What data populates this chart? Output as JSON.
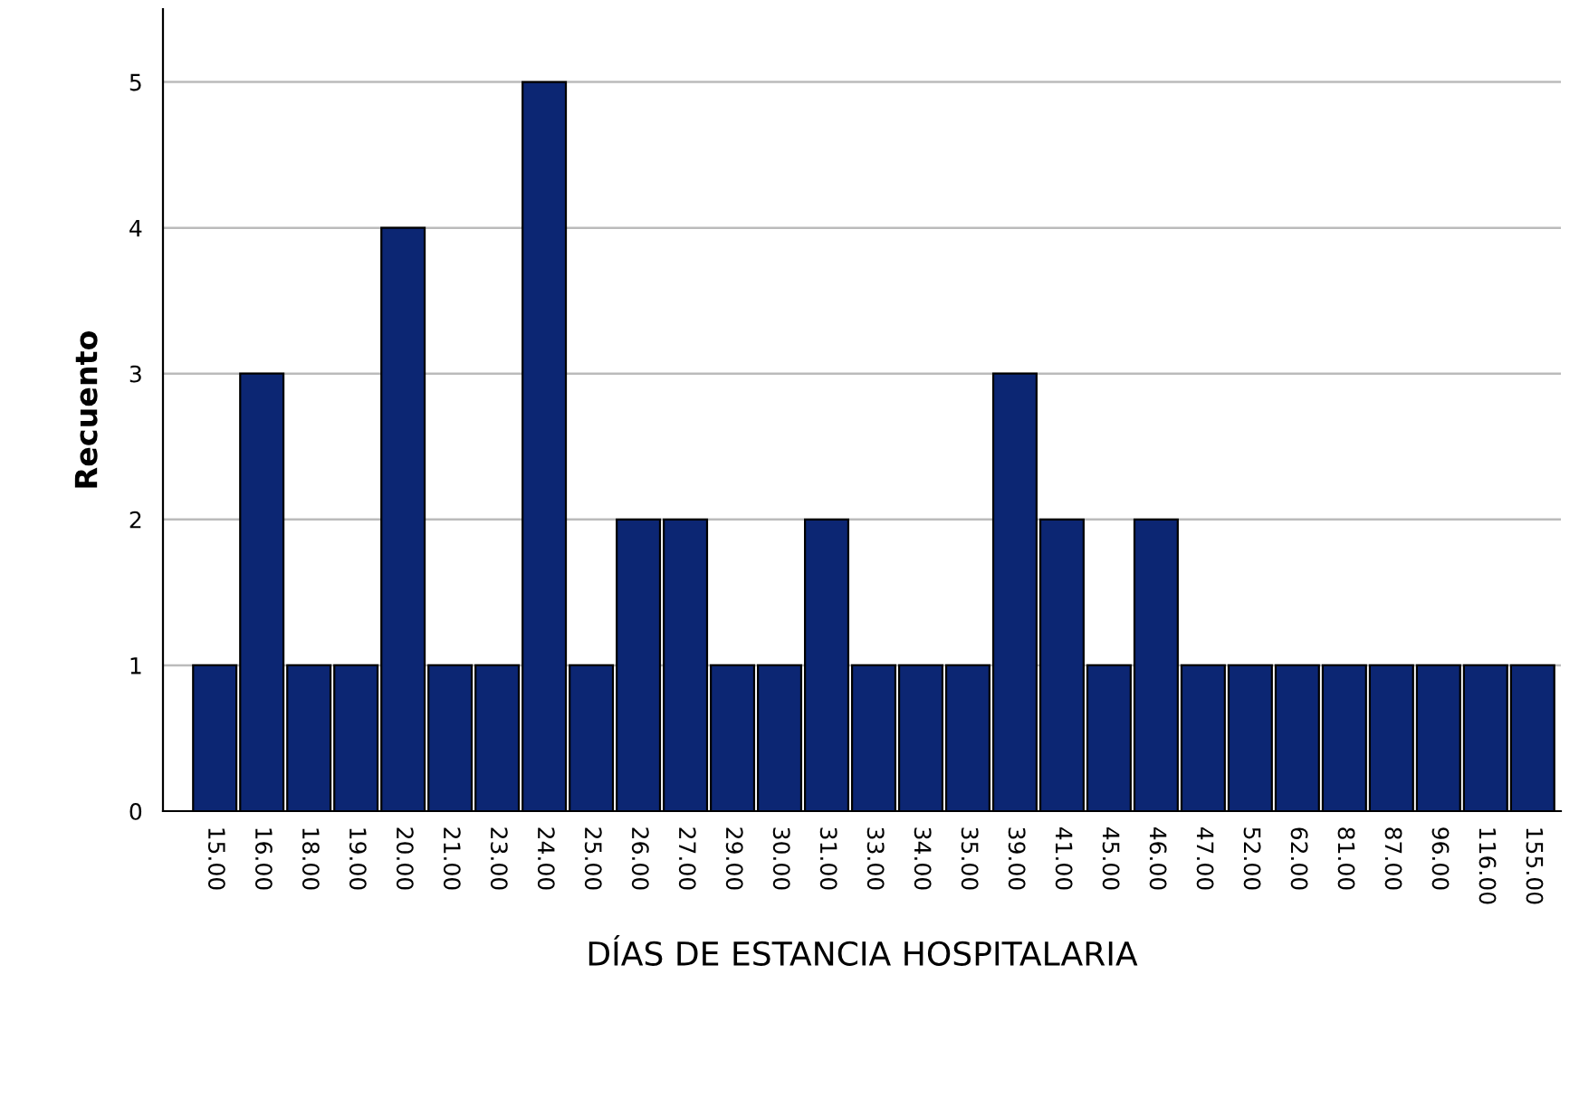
{
  "chart_data": {
    "type": "bar",
    "xlabel": "DÍAS DE ESTANCIA HOSPITALARIA",
    "ylabel": "Recuento",
    "categories": [
      "15.00",
      "16.00",
      "18.00",
      "19.00",
      "20.00",
      "21.00",
      "23.00",
      "24.00",
      "25.00",
      "26.00",
      "27.00",
      "29.00",
      "30.00",
      "31.00",
      "33.00",
      "34.00",
      "35.00",
      "39.00",
      "41.00",
      "45.00",
      "46.00",
      "47.00",
      "52.00",
      "62.00",
      "81.00",
      "87.00",
      "96.00",
      "116.00",
      "155.00"
    ],
    "values": [
      1,
      3,
      1,
      1,
      4,
      1,
      1,
      5,
      1,
      2,
      2,
      1,
      1,
      2,
      1,
      1,
      1,
      3,
      2,
      1,
      2,
      1,
      1,
      1,
      1,
      1,
      1,
      1,
      1
    ],
    "color": "#0c2673",
    "ylim": [
      0,
      5.5
    ],
    "yticks": [
      0,
      1,
      2,
      3,
      4,
      5
    ],
    "grid": "y"
  }
}
